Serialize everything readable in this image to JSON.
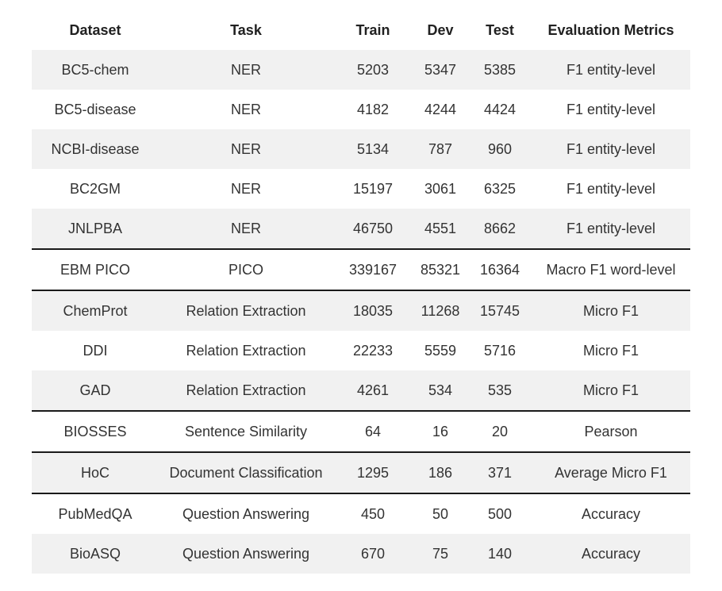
{
  "chart_data": {
    "type": "table",
    "columns": [
      "Dataset",
      "Task",
      "Train",
      "Dev",
      "Test",
      "Evaluation Metrics"
    ],
    "rows": [
      {
        "dataset": "BC5-chem",
        "task": "NER",
        "train": 5203,
        "dev": 5347,
        "test": 5385,
        "metric": "F1 entity-level",
        "group_end": false
      },
      {
        "dataset": "BC5-disease",
        "task": "NER",
        "train": 4182,
        "dev": 4244,
        "test": 4424,
        "metric": "F1 entity-level",
        "group_end": false
      },
      {
        "dataset": "NCBI-disease",
        "task": "NER",
        "train": 5134,
        "dev": 787,
        "test": 960,
        "metric": "F1 entity-level",
        "group_end": false
      },
      {
        "dataset": "BC2GM",
        "task": "NER",
        "train": 15197,
        "dev": 3061,
        "test": 6325,
        "metric": "F1 entity-level",
        "group_end": false
      },
      {
        "dataset": "JNLPBA",
        "task": "NER",
        "train": 46750,
        "dev": 4551,
        "test": 8662,
        "metric": "F1 entity-level",
        "group_end": true
      },
      {
        "dataset": "EBM PICO",
        "task": "PICO",
        "train": 339167,
        "dev": 85321,
        "test": 16364,
        "metric": "Macro F1 word-level",
        "group_end": true
      },
      {
        "dataset": "ChemProt",
        "task": "Relation Extraction",
        "train": 18035,
        "dev": 11268,
        "test": 15745,
        "metric": "Micro F1",
        "group_end": false
      },
      {
        "dataset": "DDI",
        "task": "Relation Extraction",
        "train": 22233,
        "dev": 5559,
        "test": 5716,
        "metric": "Micro F1",
        "group_end": false
      },
      {
        "dataset": "GAD",
        "task": "Relation Extraction",
        "train": 4261,
        "dev": 534,
        "test": 535,
        "metric": "Micro F1",
        "group_end": true
      },
      {
        "dataset": "BIOSSES",
        "task": "Sentence Similarity",
        "train": 64,
        "dev": 16,
        "test": 20,
        "metric": "Pearson",
        "group_end": true
      },
      {
        "dataset": "HoC",
        "task": "Document Classification",
        "train": 1295,
        "dev": 186,
        "test": 371,
        "metric": "Average Micro F1",
        "group_end": true
      },
      {
        "dataset": "PubMedQA",
        "task": "Question Answering",
        "train": 450,
        "dev": 50,
        "test": 500,
        "metric": "Accuracy",
        "group_end": false
      },
      {
        "dataset": "BioASQ",
        "task": "Question Answering",
        "train": 670,
        "dev": 75,
        "test": 140,
        "metric": "Accuracy",
        "group_end": false
      }
    ]
  },
  "style": {
    "background": "#ffffff",
    "stripe_color": "#f1f1f1",
    "separator_color": "#1a1a1a",
    "text_color": "#333333",
    "header_text_color": "#212121"
  }
}
